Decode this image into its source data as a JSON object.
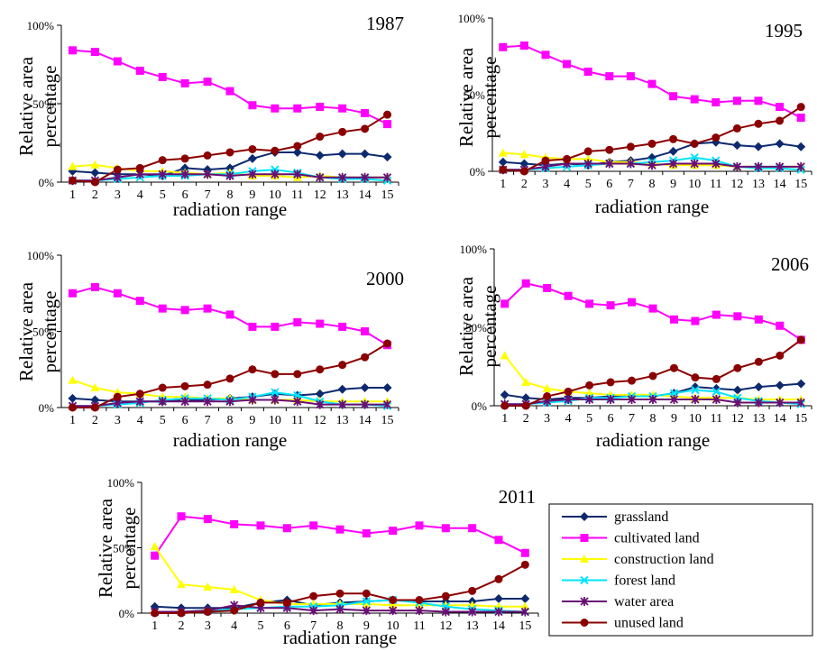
{
  "colors": {
    "grassland": "#0d2a6e",
    "cultivated land": "#ff00ff",
    "construction land": "#ffff00",
    "forest land": "#00e5ff",
    "water area": "#6a0d74",
    "unused land": "#8b0000",
    "axis": "#000000"
  },
  "legend": {
    "items": [
      "grassland",
      "cultivated land",
      "construction land",
      "forest land",
      "water area",
      "unused land"
    ],
    "markers": [
      "diamond",
      "square",
      "triangle",
      "x",
      "star",
      "circle"
    ]
  },
  "chart_data": [
    {
      "type": "line",
      "title": "1987",
      "xlabel": "radiation range",
      "ylabel": "Relative area percentage",
      "x": [
        1,
        2,
        3,
        4,
        5,
        6,
        7,
        8,
        9,
        10,
        11,
        12,
        13,
        14,
        15
      ],
      "ylim": [
        0,
        100
      ],
      "yticks": [
        "0%",
        "50%",
        "100%"
      ],
      "series": [
        {
          "name": "grassland",
          "values": [
            7,
            6,
            5,
            5,
            4,
            9,
            8,
            9,
            15,
            19,
            19,
            17,
            18,
            18,
            16
          ]
        },
        {
          "name": "cultivated land",
          "values": [
            84,
            83,
            77,
            71,
            67,
            63,
            64,
            58,
            49,
            47,
            47,
            48,
            47,
            44,
            37
          ]
        },
        {
          "name": "construction land",
          "values": [
            10,
            11,
            9,
            7,
            7,
            6,
            5,
            6,
            4,
            4,
            3,
            4,
            3,
            3,
            3
          ]
        },
        {
          "name": "forest land",
          "values": [
            1,
            1,
            2,
            3,
            4,
            4,
            5,
            5,
            7,
            8,
            6,
            3,
            2,
            2,
            1
          ]
        },
        {
          "name": "water area",
          "values": [
            1,
            1,
            3,
            5,
            5,
            5,
            5,
            4,
            5,
            5,
            5,
            3,
            3,
            3,
            3
          ]
        },
        {
          "name": "unused land",
          "values": [
            1,
            0,
            8,
            9,
            14,
            15,
            17,
            19,
            21,
            20,
            23,
            29,
            32,
            34,
            43
          ]
        }
      ]
    },
    {
      "type": "line",
      "title": "1995",
      "xlabel": "radiation range",
      "ylabel": "Relative area percentage",
      "x": [
        1,
        2,
        3,
        4,
        5,
        6,
        7,
        8,
        9,
        10,
        11,
        12,
        13,
        14,
        15
      ],
      "ylim": [
        0,
        100
      ],
      "yticks": [
        "0%",
        "50%",
        "100%"
      ],
      "series": [
        {
          "name": "grassland",
          "values": [
            6,
            5,
            4,
            5,
            4,
            6,
            7,
            9,
            13,
            18,
            19,
            17,
            16,
            18,
            16
          ]
        },
        {
          "name": "cultivated land",
          "values": [
            81,
            82,
            76,
            70,
            65,
            62,
            62,
            57,
            49,
            47,
            45,
            46,
            46,
            42,
            35
          ]
        },
        {
          "name": "construction land",
          "values": [
            12,
            11,
            9,
            8,
            8,
            6,
            6,
            5,
            4,
            4,
            4,
            3,
            3,
            3,
            3
          ]
        },
        {
          "name": "forest land",
          "values": [
            1,
            1,
            2,
            3,
            4,
            5,
            5,
            6,
            7,
            9,
            7,
            3,
            2,
            2,
            1
          ]
        },
        {
          "name": "water area",
          "values": [
            1,
            1,
            3,
            5,
            5,
            5,
            5,
            4,
            5,
            5,
            5,
            3,
            3,
            3,
            3
          ]
        },
        {
          "name": "unused land",
          "values": [
            1,
            0,
            7,
            8,
            13,
            14,
            16,
            18,
            21,
            18,
            22,
            28,
            31,
            33,
            42
          ]
        }
      ]
    },
    {
      "type": "line",
      "title": "2000",
      "xlabel": "radiation range",
      "ylabel": "Relative area percentage",
      "x": [
        1,
        2,
        3,
        4,
        5,
        6,
        7,
        8,
        9,
        10,
        11,
        12,
        13,
        14,
        15
      ],
      "ylim": [
        0,
        100
      ],
      "yticks": [
        "0%",
        "50%",
        "100%"
      ],
      "series": [
        {
          "name": "grassland",
          "values": [
            6,
            5,
            4,
            4,
            4,
            5,
            5,
            6,
            7,
            9,
            8,
            9,
            12,
            13,
            13
          ]
        },
        {
          "name": "cultivated land",
          "values": [
            75,
            79,
            75,
            70,
            65,
            64,
            65,
            61,
            53,
            53,
            56,
            55,
            53,
            50,
            41
          ]
        },
        {
          "name": "construction land",
          "values": [
            18,
            13,
            10,
            9,
            7,
            7,
            6,
            6,
            5,
            5,
            5,
            4,
            4,
            4,
            4
          ]
        },
        {
          "name": "forest land",
          "values": [
            1,
            1,
            2,
            3,
            5,
            6,
            6,
            5,
            7,
            10,
            8,
            4,
            2,
            2,
            1
          ]
        },
        {
          "name": "water area",
          "values": [
            1,
            1,
            3,
            4,
            4,
            4,
            4,
            4,
            5,
            5,
            4,
            2,
            2,
            2,
            2
          ]
        },
        {
          "name": "unused land",
          "values": [
            0,
            0,
            7,
            9,
            13,
            14,
            15,
            19,
            25,
            22,
            22,
            25,
            28,
            33,
            42
          ]
        }
      ]
    },
    {
      "type": "line",
      "title": "2006",
      "xlabel": "radiation range",
      "ylabel": "Relative area percentage",
      "x": [
        1,
        2,
        3,
        4,
        5,
        6,
        7,
        8,
        9,
        10,
        11,
        12,
        13,
        14,
        15
      ],
      "ylim": [
        0,
        100
      ],
      "yticks": [
        "0%",
        "50%",
        "100%"
      ],
      "series": [
        {
          "name": "grassland",
          "values": [
            7,
            5,
            4,
            5,
            5,
            6,
            6,
            6,
            8,
            12,
            11,
            10,
            12,
            13,
            14
          ]
        },
        {
          "name": "cultivated land",
          "values": [
            65,
            78,
            75,
            70,
            65,
            64,
            66,
            62,
            55,
            54,
            58,
            57,
            55,
            51,
            42
          ]
        },
        {
          "name": "construction land",
          "values": [
            32,
            15,
            11,
            9,
            8,
            7,
            7,
            7,
            6,
            5,
            5,
            5,
            4,
            4,
            4
          ]
        },
        {
          "name": "forest land",
          "values": [
            1,
            1,
            2,
            3,
            5,
            5,
            6,
            6,
            8,
            10,
            9,
            5,
            3,
            2,
            1
          ]
        },
        {
          "name": "water area",
          "values": [
            1,
            1,
            3,
            4,
            4,
            4,
            4,
            4,
            4,
            4,
            4,
            2,
            2,
            2,
            2
          ]
        },
        {
          "name": "unused land",
          "values": [
            0,
            0,
            6,
            9,
            13,
            15,
            16,
            19,
            24,
            18,
            17,
            24,
            28,
            32,
            42
          ]
        }
      ]
    },
    {
      "type": "line",
      "title": "2011",
      "xlabel": "radiation range",
      "ylabel": "Relative area percentage",
      "x": [
        1,
        2,
        3,
        4,
        5,
        6,
        7,
        8,
        9,
        10,
        11,
        12,
        13,
        14,
        15
      ],
      "ylim": [
        0,
        100
      ],
      "yticks": [
        "0%",
        "50%",
        "100%"
      ],
      "series": [
        {
          "name": "grassland",
          "values": [
            5,
            4,
            4,
            4,
            8,
            10,
            6,
            8,
            9,
            10,
            9,
            9,
            9,
            11,
            11
          ]
        },
        {
          "name": "cultivated land",
          "values": [
            44,
            74,
            72,
            68,
            67,
            65,
            67,
            64,
            61,
            63,
            67,
            65,
            65,
            56,
            46
          ]
        },
        {
          "name": "construction land",
          "values": [
            51,
            22,
            20,
            18,
            10,
            7,
            7,
            7,
            7,
            6,
            6,
            6,
            6,
            5,
            5
          ]
        },
        {
          "name": "forest land",
          "values": [
            1,
            1,
            2,
            3,
            4,
            5,
            5,
            6,
            9,
            10,
            8,
            5,
            3,
            2,
            1
          ]
        },
        {
          "name": "water area",
          "values": [
            1,
            1,
            2,
            6,
            4,
            4,
            2,
            3,
            2,
            2,
            2,
            1,
            1,
            1,
            1
          ]
        },
        {
          "name": "unused land",
          "values": [
            0,
            0,
            1,
            2,
            8,
            8,
            13,
            15,
            15,
            10,
            10,
            13,
            17,
            26,
            37
          ]
        }
      ]
    }
  ]
}
